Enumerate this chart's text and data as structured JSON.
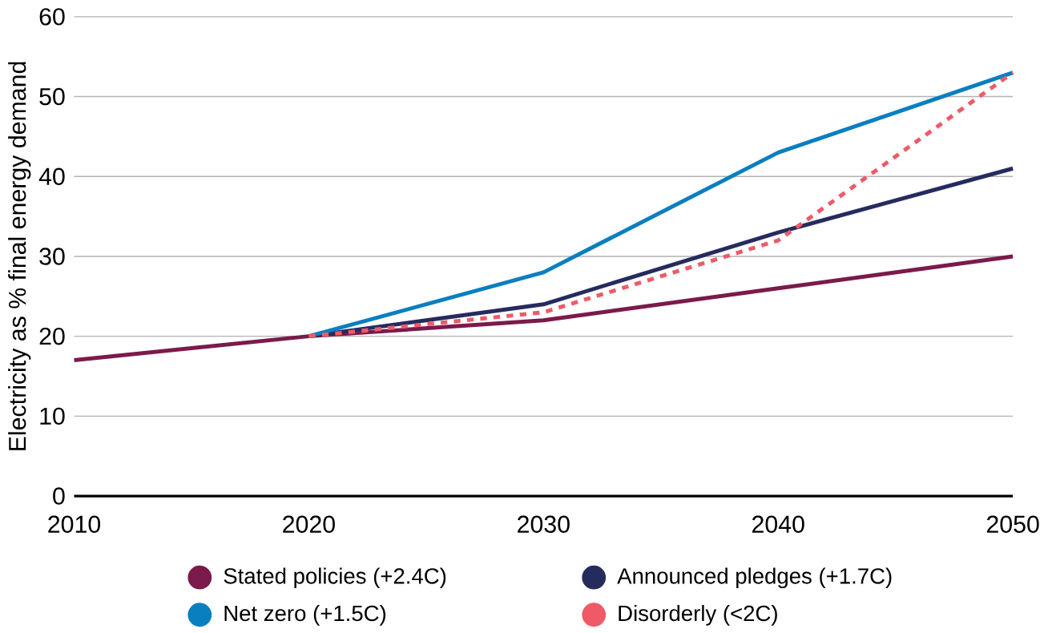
{
  "chart_data": {
    "type": "line",
    "ylabel": "Electricity as % final energy demand",
    "x": [
      2010,
      2020,
      2030,
      2040,
      2050
    ],
    "series": [
      {
        "name": "Stated policies (+2.4C)",
        "color": "#7b1a4b",
        "values": [
          17,
          20,
          22,
          26,
          30
        ]
      },
      {
        "name": "Announced pledges (+1.7C)",
        "color": "#262b5e",
        "values": [
          null,
          20,
          24,
          33,
          41
        ]
      },
      {
        "name": "Net zero (+1.5C)",
        "color": "#0a7fc0",
        "values": [
          null,
          20,
          28,
          43,
          53
        ]
      },
      {
        "name": "Disorderly (<2C)",
        "color": "#ee5a68",
        "values": [
          null,
          20,
          23,
          32,
          53
        ],
        "line_style": "dashed"
      }
    ],
    "xlim": [
      2010,
      2050
    ],
    "ylim": [
      0,
      60
    ],
    "xticks": [
      2010,
      2020,
      2030,
      2040,
      2050
    ],
    "yticks": [
      0,
      10,
      20,
      30,
      40,
      50,
      60
    ],
    "grid": "y",
    "legend": "bottom",
    "marker": "none"
  }
}
